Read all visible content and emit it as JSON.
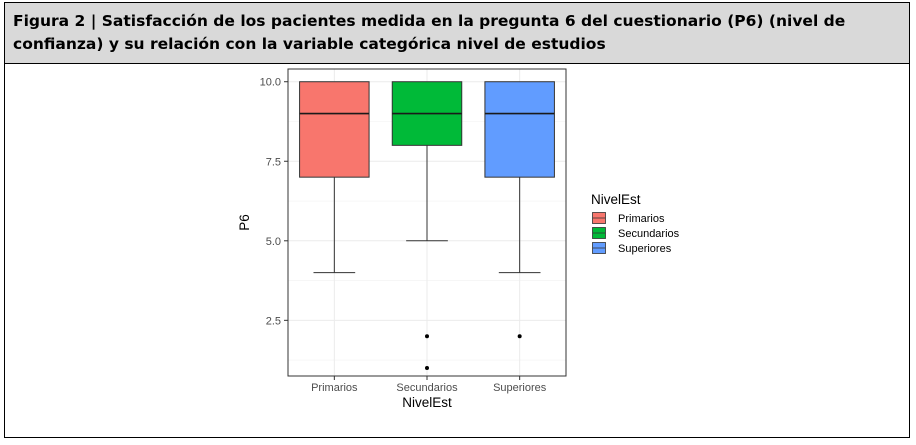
{
  "figure": {
    "caption": "Figura 2 | Satisfacción de los pacientes medida en la pregunta 6 del cuestionario (P6) (nivel de confianza) y su relación con la variable categórica nivel de estudios"
  },
  "chart_data": {
    "type": "boxplot",
    "xlabel": "NivelEst",
    "ylabel": "P6",
    "categories": [
      "Primarios",
      "Secundarios",
      "Superiores"
    ],
    "ylim": [
      0.75,
      10.4
    ],
    "yticks": [
      2.5,
      5.0,
      7.5,
      10.0
    ],
    "ytick_labels": [
      "2.5",
      "5.0",
      "7.5",
      "10.0"
    ],
    "grid": true,
    "legend": {
      "title": "NivelEst",
      "position": "right",
      "entries": [
        "Primarios",
        "Secundarios",
        "Superiores"
      ]
    },
    "series": [
      {
        "name": "Primarios",
        "color": "#F8766D",
        "whisker_low": 4,
        "q1": 7,
        "median": 9,
        "q3": 10,
        "whisker_high": 10,
        "outliers": []
      },
      {
        "name": "Secundarios",
        "color": "#00BA38",
        "whisker_low": 5,
        "q1": 8,
        "median": 9,
        "q3": 10,
        "whisker_high": 10,
        "outliers": [
          2,
          1
        ]
      },
      {
        "name": "Superiores",
        "color": "#619CFF",
        "whisker_low": 4,
        "q1": 7,
        "median": 9,
        "q3": 10,
        "whisker_high": 10,
        "outliers": [
          2
        ]
      }
    ]
  }
}
